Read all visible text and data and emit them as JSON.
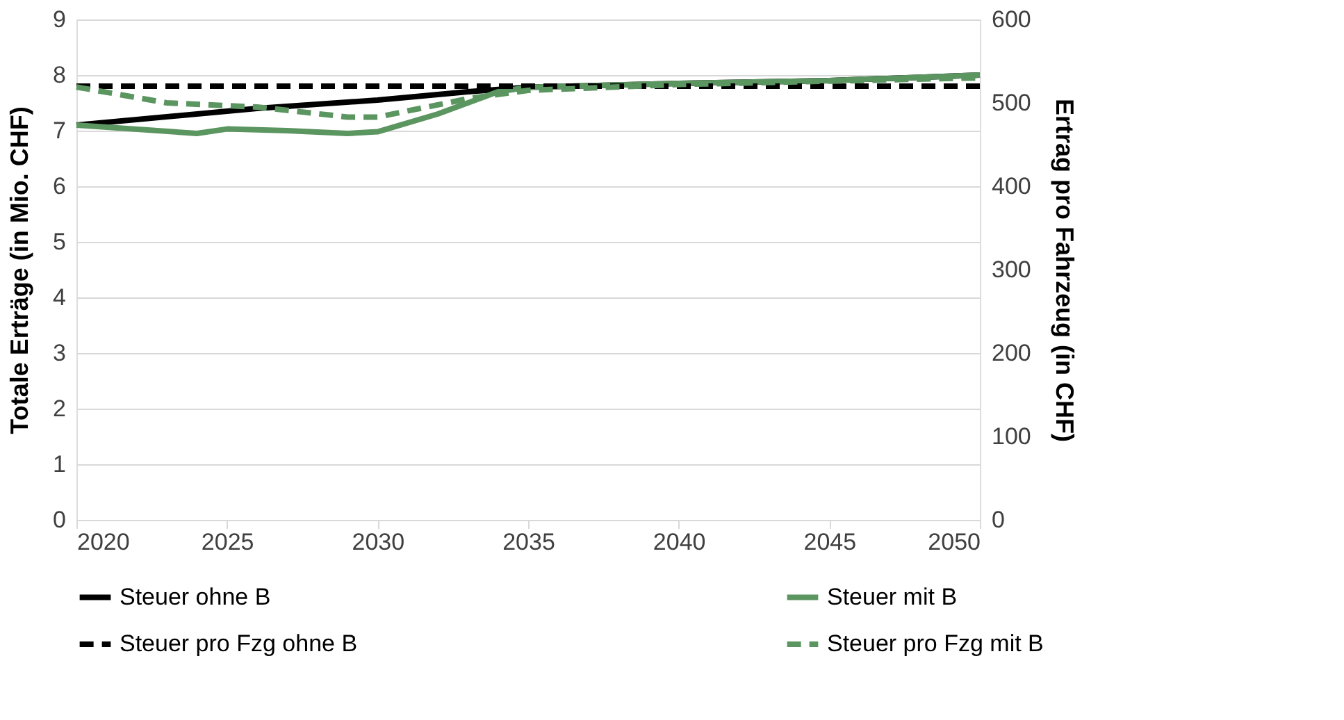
{
  "chart_data": {
    "type": "line",
    "ylabel": "Totale Erträge (in Mio. CHF)",
    "y2label": "Ertrag pro Fahrzeug (in CHF)",
    "xlim": [
      2020,
      2050
    ],
    "xticks": [
      2020,
      2025,
      2030,
      2035,
      2040,
      2045,
      2050
    ],
    "ylim": [
      0,
      9
    ],
    "yticks": [
      0,
      1,
      2,
      3,
      4,
      5,
      6,
      7,
      8,
      9
    ],
    "y2lim": [
      0,
      600
    ],
    "y2ticks": [
      0,
      100,
      200,
      300,
      400,
      500,
      600
    ],
    "grid": "y",
    "legend": "bottom",
    "marker": "none",
    "series": [
      {
        "name": "Steuer ohne B",
        "color": "#000000",
        "line_style": "solid",
        "x": [
          2020,
          2026,
          2030,
          2033,
          2035,
          2040,
          2045,
          2050
        ],
        "values": [
          7.1,
          7.4,
          7.55,
          7.7,
          7.78,
          7.85,
          7.9,
          8.0
        ]
      },
      {
        "name": "Steuer mit B",
        "color": "#5b9560",
        "line_style": "solid",
        "x": [
          2020,
          2024,
          2025,
          2027,
          2029,
          2030,
          2032,
          2034,
          2035,
          2040,
          2045,
          2050
        ],
        "values": [
          7.1,
          6.95,
          7.03,
          7.0,
          6.95,
          6.98,
          7.3,
          7.7,
          7.78,
          7.85,
          7.9,
          8.0
        ]
      },
      {
        "name": "Steuer pro Fzg ohne B",
        "color": "#000000",
        "line_style": "dashed",
        "axis": "y2",
        "x": [
          2020,
          2050
        ],
        "values": [
          520,
          520
        ]
      },
      {
        "name": "Steuer pro Fzg mit B",
        "color": "#5b9560",
        "line_style": "dashed",
        "axis": "y2",
        "x": [
          2020,
          2023,
          2026,
          2029,
          2030,
          2033,
          2035,
          2040,
          2045,
          2050
        ],
        "values": [
          519,
          500,
          495,
          483,
          483,
          505,
          515,
          522,
          526,
          530
        ]
      }
    ]
  }
}
